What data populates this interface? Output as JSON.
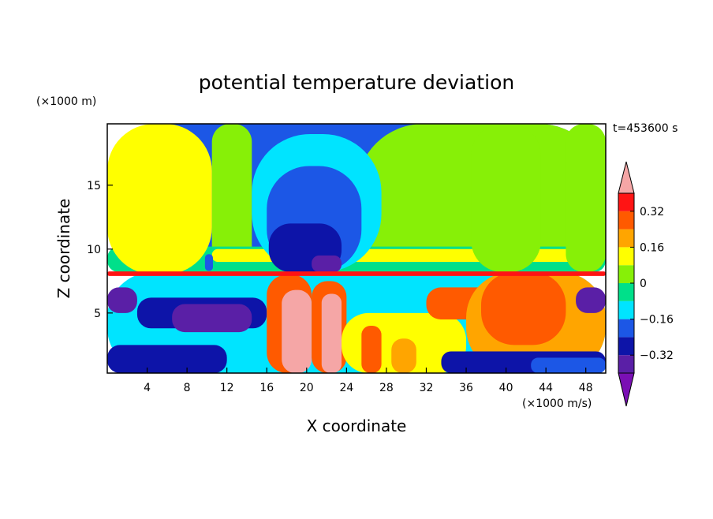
{
  "chart_data": {
    "type": "heatmap",
    "title": "potential temperature deviation",
    "xlabel": "X coordinate",
    "ylabel": "Z coordinate",
    "x_unit": "(×1000 m/s)",
    "y_unit": "(×1000 m)",
    "time_label": "t=453600 s",
    "xlim": [
      0,
      50
    ],
    "ylim": [
      0.3,
      19.8
    ],
    "x_ticks": [
      4,
      8,
      12,
      16,
      20,
      24,
      28,
      32,
      36,
      40,
      44,
      48
    ],
    "y_ticks": [
      5,
      10,
      15
    ],
    "colorbar": {
      "levels": [
        -0.4,
        -0.32,
        -0.24,
        -0.16,
        -0.08,
        0,
        0.08,
        0.16,
        0.24,
        0.32,
        0.4
      ],
      "tick_values": [
        0.32,
        0.16,
        0,
        -0.16,
        -0.32
      ],
      "tick_labels": [
        "0.32",
        "0.16",
        "0",
        "−0.16",
        "−0.32"
      ],
      "colors": [
        "#7a0fb4",
        "#5a1fa6",
        "#0d14a8",
        "#1c57e6",
        "#00e4ff",
        "#00e08a",
        "#87f007",
        "#ffff00",
        "#ffa500",
        "#ff5a00",
        "#ff1414",
        "#f5a6a6"
      ]
    },
    "regions": [
      {
        "band": 3,
        "x": 0.0,
        "y": 8.2,
        "x2": 50.0,
        "y2": 19.8
      },
      {
        "band": 6,
        "x": 25.0,
        "y": 8.2,
        "x2": 50.0,
        "y2": 19.8
      },
      {
        "band": 6,
        "x": 10.5,
        "y": 8.2,
        "x2": 14.5,
        "y2": 19.8
      },
      {
        "band": 5,
        "x": 0.0,
        "y": 8.2,
        "x2": 50.0,
        "y2": 10.2
      },
      {
        "band": 7,
        "x": 0.0,
        "y": 8.0,
        "x2": 10.5,
        "y2": 19.8
      },
      {
        "band": 7,
        "x": 10.5,
        "y": 9.0,
        "x2": 50.0,
        "y2": 10.0
      },
      {
        "band": 6,
        "x": 36.5,
        "y": 8.2,
        "x2": 43.5,
        "y2": 19.8
      },
      {
        "band": 6,
        "x": 46.0,
        "y": 8.2,
        "x2": 50.0,
        "y2": 19.8
      },
      {
        "band": 3,
        "x": 9.8,
        "y": 8.3,
        "x2": 10.6,
        "y2": 9.6
      },
      {
        "band": 4,
        "x": 14.5,
        "y": 8.2,
        "x2": 27.5,
        "y2": 19.0
      },
      {
        "band": 3,
        "x": 16.0,
        "y": 8.2,
        "x2": 25.5,
        "y2": 16.5
      },
      {
        "band": 2,
        "x": 16.2,
        "y": 8.2,
        "x2": 23.5,
        "y2": 12.0
      },
      {
        "band": 1,
        "x": 20.5,
        "y": 8.2,
        "x2": 23.5,
        "y2": 9.5
      },
      {
        "band": 4,
        "x": 0.0,
        "y": 0.3,
        "x2": 50.0,
        "y2": 8.2
      },
      {
        "band": 1,
        "x": 0.0,
        "y": 5.0,
        "x2": 3.0,
        "y2": 7.0
      },
      {
        "band": 2,
        "x": 3.0,
        "y": 3.8,
        "x2": 16.0,
        "y2": 6.2
      },
      {
        "band": 1,
        "x": 6.5,
        "y": 3.5,
        "x2": 14.5,
        "y2": 5.7
      },
      {
        "band": 2,
        "x": 0.0,
        "y": 0.3,
        "x2": 12.0,
        "y2": 2.5
      },
      {
        "band": 9,
        "x": 16.0,
        "y": 0.3,
        "x2": 20.5,
        "y2": 8.0
      },
      {
        "band": 11,
        "x": 17.5,
        "y": 0.3,
        "x2": 20.5,
        "y2": 6.8
      },
      {
        "band": 9,
        "x": 20.5,
        "y": 0.3,
        "x2": 24.0,
        "y2": 7.5
      },
      {
        "band": 11,
        "x": 21.5,
        "y": 0.3,
        "x2": 23.5,
        "y2": 6.5
      },
      {
        "band": 7,
        "x": 23.5,
        "y": 0.3,
        "x2": 36.0,
        "y2": 5.0
      },
      {
        "band": 9,
        "x": 25.5,
        "y": 0.3,
        "x2": 27.5,
        "y2": 4.0
      },
      {
        "band": 8,
        "x": 28.5,
        "y": 0.3,
        "x2": 31.0,
        "y2": 3.0
      },
      {
        "band": 9,
        "x": 32.0,
        "y": 4.5,
        "x2": 40.0,
        "y2": 7.0
      },
      {
        "band": 8,
        "x": 36.0,
        "y": 0.3,
        "x2": 50.0,
        "y2": 8.2
      },
      {
        "band": 9,
        "x": 37.5,
        "y": 2.5,
        "x2": 46.0,
        "y2": 8.2
      },
      {
        "band": 2,
        "x": 33.5,
        "y": 0.3,
        "x2": 50.0,
        "y2": 2.0
      },
      {
        "band": 3,
        "x": 42.5,
        "y": 0.3,
        "x2": 50.0,
        "y2": 1.5
      },
      {
        "band": 1,
        "x": 47.0,
        "y": 5.0,
        "x2": 50.0,
        "y2": 7.0
      },
      {
        "band": 10,
        "x": 0.0,
        "y": 7.9,
        "x2": 50.0,
        "y2": 8.25
      }
    ]
  }
}
